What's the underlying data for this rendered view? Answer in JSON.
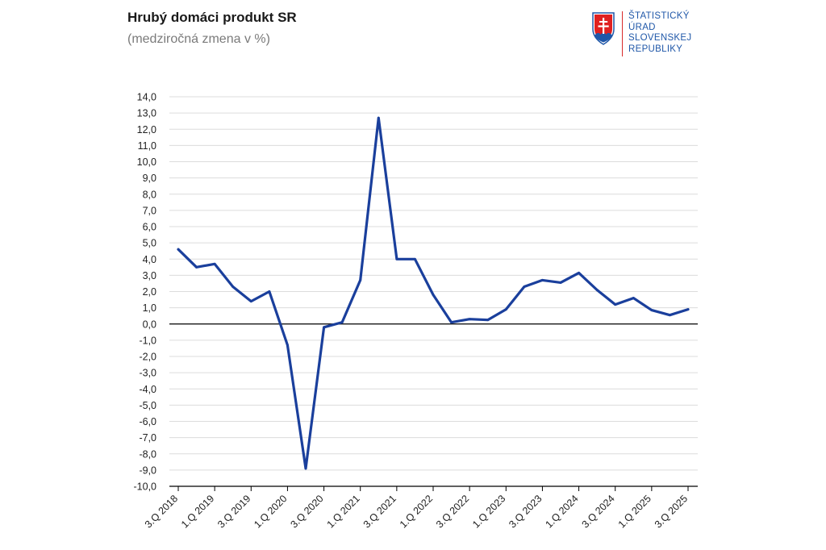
{
  "chart_data": {
    "type": "line",
    "title": "Hrubý domáci produkt SR",
    "subtitle": "(medziročná zmena v %)",
    "xlabel": "",
    "ylabel": "",
    "ylim": [
      -10,
      14
    ],
    "y_ticks": [
      "14,0",
      "13,0",
      "12,0",
      "11,0",
      "10,0",
      "9,0",
      "8,0",
      "7,0",
      "6,0",
      "5,0",
      "4,0",
      "3,0",
      "2,0",
      "1,0",
      "0,0",
      "-1,0",
      "-2,0",
      "-3,0",
      "-4,0",
      "-5,0",
      "-6,0",
      "-7,0",
      "-8,0",
      "-9,0",
      "-10,0"
    ],
    "x_tick_labels": [
      "3.Q 2018",
      "1.Q 2019",
      "3.Q 2019",
      "1.Q 2020",
      "3.Q 2020",
      "1.Q 2021",
      "3.Q 2021",
      "1.Q 2022",
      "3.Q 2022",
      "1.Q 2023",
      "3.Q 2023",
      "1.Q 2024",
      "3.Q 2024",
      "1.Q 2025",
      "3.Q 2025"
    ],
    "grid": true,
    "series": [
      {
        "name": "Hrubý domáci produkt SR",
        "color": "#1a3f9c",
        "x": [
          "3.Q 2018",
          "4.Q 2018",
          "1.Q 2019",
          "2.Q 2019",
          "3.Q 2019",
          "4.Q 2019",
          "1.Q 2020",
          "2.Q 2020",
          "3.Q 2020",
          "4.Q 2020",
          "1.Q 2021",
          "2.Q 2021",
          "3.Q 2021",
          "4.Q 2021",
          "1.Q 2022",
          "2.Q 2022",
          "3.Q 2022",
          "4.Q 2022",
          "1.Q 2023",
          "2.Q 2023",
          "3.Q 2023",
          "4.Q 2023",
          "1.Q 2024",
          "2.Q 2024",
          "3.Q 2024",
          "4.Q 2024",
          "1.Q 2025",
          "2.Q 2025",
          "3.Q 2025"
        ],
        "values": [
          4.6,
          3.5,
          3.7,
          2.3,
          1.4,
          2.0,
          -1.3,
          -8.9,
          -0.2,
          0.1,
          2.7,
          12.7,
          4.0,
          4.0,
          1.8,
          0.1,
          0.3,
          0.25,
          0.9,
          2.3,
          2.7,
          2.55,
          3.15,
          2.1,
          1.2,
          1.6,
          0.85,
          0.55,
          0.9
        ]
      }
    ]
  },
  "logo": {
    "lines": [
      "ŠTATISTICKÝ",
      "ÚRAD",
      "SLOVENSKEJ",
      "REPUBLIKY"
    ],
    "colors": {
      "text": "#1f57a8",
      "shield_red": "#e02020",
      "shield_blue": "#1f57a8",
      "divider": "#d92b2b"
    }
  }
}
